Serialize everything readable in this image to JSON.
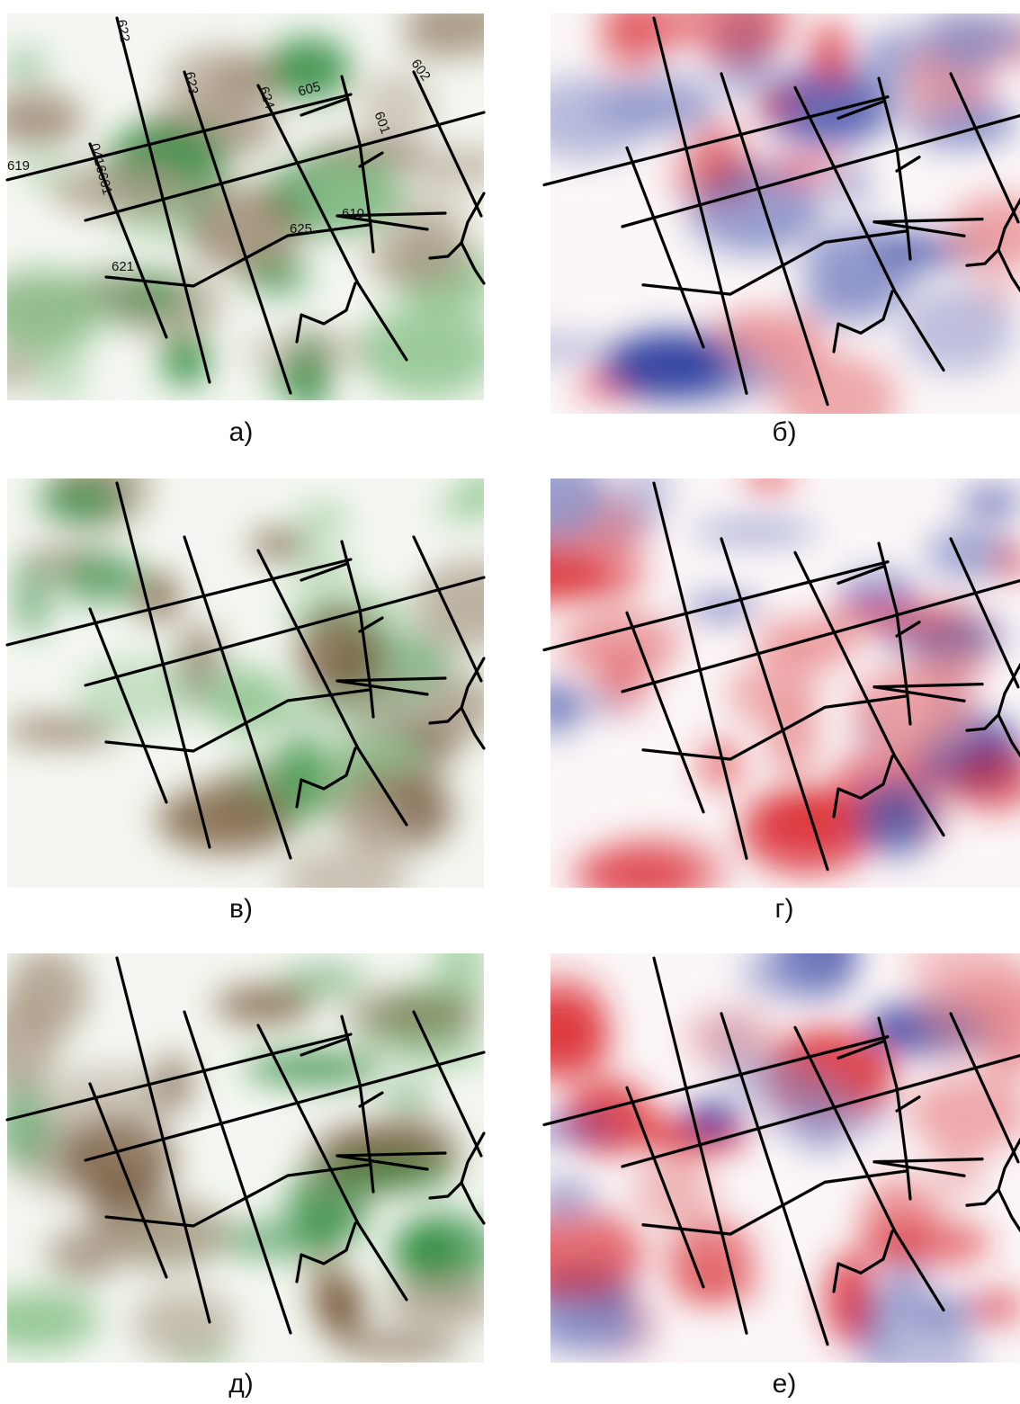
{
  "panels": [
    {
      "label": "а)"
    },
    {
      "label": "б)"
    },
    {
      "label": "в)"
    },
    {
      "label": "г)"
    },
    {
      "label": "д)"
    },
    {
      "label": "е)"
    }
  ],
  "line_labels": [
    "619",
    "622",
    "623",
    "624",
    "605",
    "602",
    "601",
    "0416601",
    "625",
    "610",
    "621"
  ]
}
